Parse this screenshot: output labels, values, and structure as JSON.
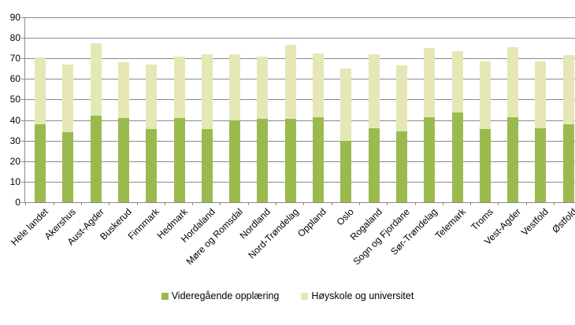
{
  "chart_data": {
    "type": "bar",
    "stacked": true,
    "title": "",
    "xlabel": "",
    "ylabel": "",
    "categories": [
      "Hele landet",
      "Akershus",
      "Aust-Agder",
      "Buskerud",
      "Finnmark",
      "Hedmark",
      "Hordaland",
      "Møre og Romsdal",
      "Nordland",
      "Nord-Trøndelag",
      "Oppland",
      "Oslo",
      "Rogaland",
      "Sogn og Fjordane",
      "Sør-Trøndelag",
      "Telemark",
      "Troms",
      "Vest-Agder",
      "Vestfold",
      "Østfold"
    ],
    "series": [
      {
        "name": "Videregående opplæring",
        "color": "#9bba4e",
        "values": [
          38.0,
          34.0,
          42.0,
          41.0,
          35.5,
          41.0,
          35.5,
          40.0,
          40.5,
          40.5,
          41.5,
          30.0,
          36.0,
          34.5,
          41.5,
          43.5,
          35.5,
          41.5,
          36.0,
          38.0
        ]
      },
      {
        "name": "Høyskole og universitet",
        "color": "#e5e8b4",
        "values": [
          32.5,
          33.0,
          35.5,
          27.0,
          31.5,
          30.0,
          36.5,
          32.0,
          30.5,
          36.0,
          31.0,
          35.0,
          36.0,
          32.0,
          33.5,
          30.0,
          33.0,
          34.0,
          32.5,
          33.5
        ]
      }
    ],
    "ylim": [
      0,
      90
    ],
    "ytick_interval": 10,
    "ytick_labels": [
      "0",
      "10",
      "20",
      "30",
      "40",
      "50",
      "60",
      "70",
      "80",
      "90"
    ],
    "grid": true,
    "legend_position": "bottom",
    "gridline_color": "#8a8a8a",
    "text_color": "#000000"
  }
}
